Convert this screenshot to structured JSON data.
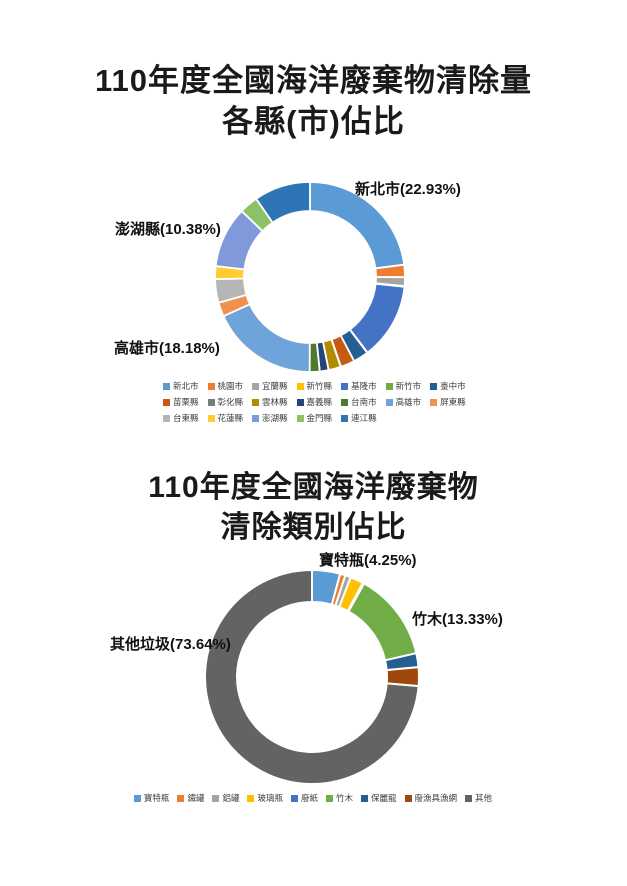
{
  "page": {
    "background": "#ffffff"
  },
  "chart_data": [
    {
      "type": "pie",
      "subtype": "donut",
      "title": "110年度全國海洋廢棄物清除量 各縣(市)佔比",
      "title_lines": [
        "110年度全國海洋廢棄物清除量",
        "各縣(市)佔比"
      ],
      "legend_position": "bottom",
      "units": "%",
      "series": [
        {
          "name": "新北市",
          "value": 22.93,
          "color": "#5B9BD5"
        },
        {
          "name": "桃園市",
          "value": 2.1,
          "color": "#ED7D31"
        },
        {
          "name": "宜蘭縣",
          "value": 1.5,
          "color": "#A5A5A5"
        },
        {
          "name": "新竹縣",
          "value": 0.12,
          "color": "#FFC000"
        },
        {
          "name": "基隆市",
          "value": 13.0,
          "color": "#4472C4"
        },
        {
          "name": "新竹市",
          "value": 0.06,
          "color": "#70AD47"
        },
        {
          "name": "臺中市",
          "value": 2.6,
          "color": "#255E91"
        },
        {
          "name": "苗栗縣",
          "value": 2.4,
          "color": "#C55A11"
        },
        {
          "name": "彰化縣",
          "value": 0.05,
          "color": "#7B7B7B"
        },
        {
          "name": "雲林縣",
          "value": 2.1,
          "color": "#B38B00"
        },
        {
          "name": "嘉義縣",
          "value": 1.5,
          "color": "#264478"
        },
        {
          "name": "台南市",
          "value": 1.7,
          "color": "#4E7A2E"
        },
        {
          "name": "高雄市",
          "value": 18.18,
          "color": "#6FA4DA"
        },
        {
          "name": "屏東縣",
          "value": 2.4,
          "color": "#F09152"
        },
        {
          "name": "台東縣",
          "value": 4.0,
          "color": "#B5B5B5"
        },
        {
          "name": "花蓮縣",
          "value": 2.2,
          "color": "#FFCD33"
        },
        {
          "name": "澎湖縣",
          "value": 10.38,
          "color": "#8099DB"
        },
        {
          "name": "金門縣",
          "value": 3.2,
          "color": "#8CC168"
        },
        {
          "name": "連江縣",
          "value": 9.58,
          "color": "#2E75B6"
        }
      ],
      "callouts": [
        {
          "series": "新北市",
          "text": "新北市(22.93%)"
        },
        {
          "series": "澎湖縣",
          "text": "澎湖縣(10.38%)"
        },
        {
          "series": "高雄市",
          "text": "高雄市(18.18%)"
        }
      ]
    },
    {
      "type": "pie",
      "subtype": "donut",
      "title": "110年度全國海洋廢棄物 清除類別佔比",
      "title_lines": [
        "110年度全國海洋廢棄物",
        "清除類別佔比"
      ],
      "legend_position": "bottom",
      "units": "%",
      "series": [
        {
          "name": "寶特瓶",
          "value": 4.25,
          "color": "#5B9BD5"
        },
        {
          "name": "鐵罐",
          "value": 0.8,
          "color": "#ED7D31"
        },
        {
          "name": "鋁罐",
          "value": 0.85,
          "color": "#A5A5A5"
        },
        {
          "name": "玻璃瓶",
          "value": 2.0,
          "color": "#FFC000"
        },
        {
          "name": "廢紙",
          "value": 0.2,
          "color": "#4472C4"
        },
        {
          "name": "竹木",
          "value": 13.33,
          "color": "#70AD47"
        },
        {
          "name": "保麗龍",
          "value": 2.1,
          "color": "#255E91"
        },
        {
          "name": "廢漁具漁網",
          "value": 2.83,
          "color": "#9E480E"
        },
        {
          "name": "其他",
          "value": 73.64,
          "color": "#636363"
        }
      ],
      "callouts": [
        {
          "series": "寶特瓶",
          "text": "寶特瓶(4.25%)"
        },
        {
          "series": "竹木",
          "text": "竹木(13.33%)"
        },
        {
          "series": "其他",
          "text": "其他垃圾(73.64%)"
        }
      ]
    }
  ]
}
